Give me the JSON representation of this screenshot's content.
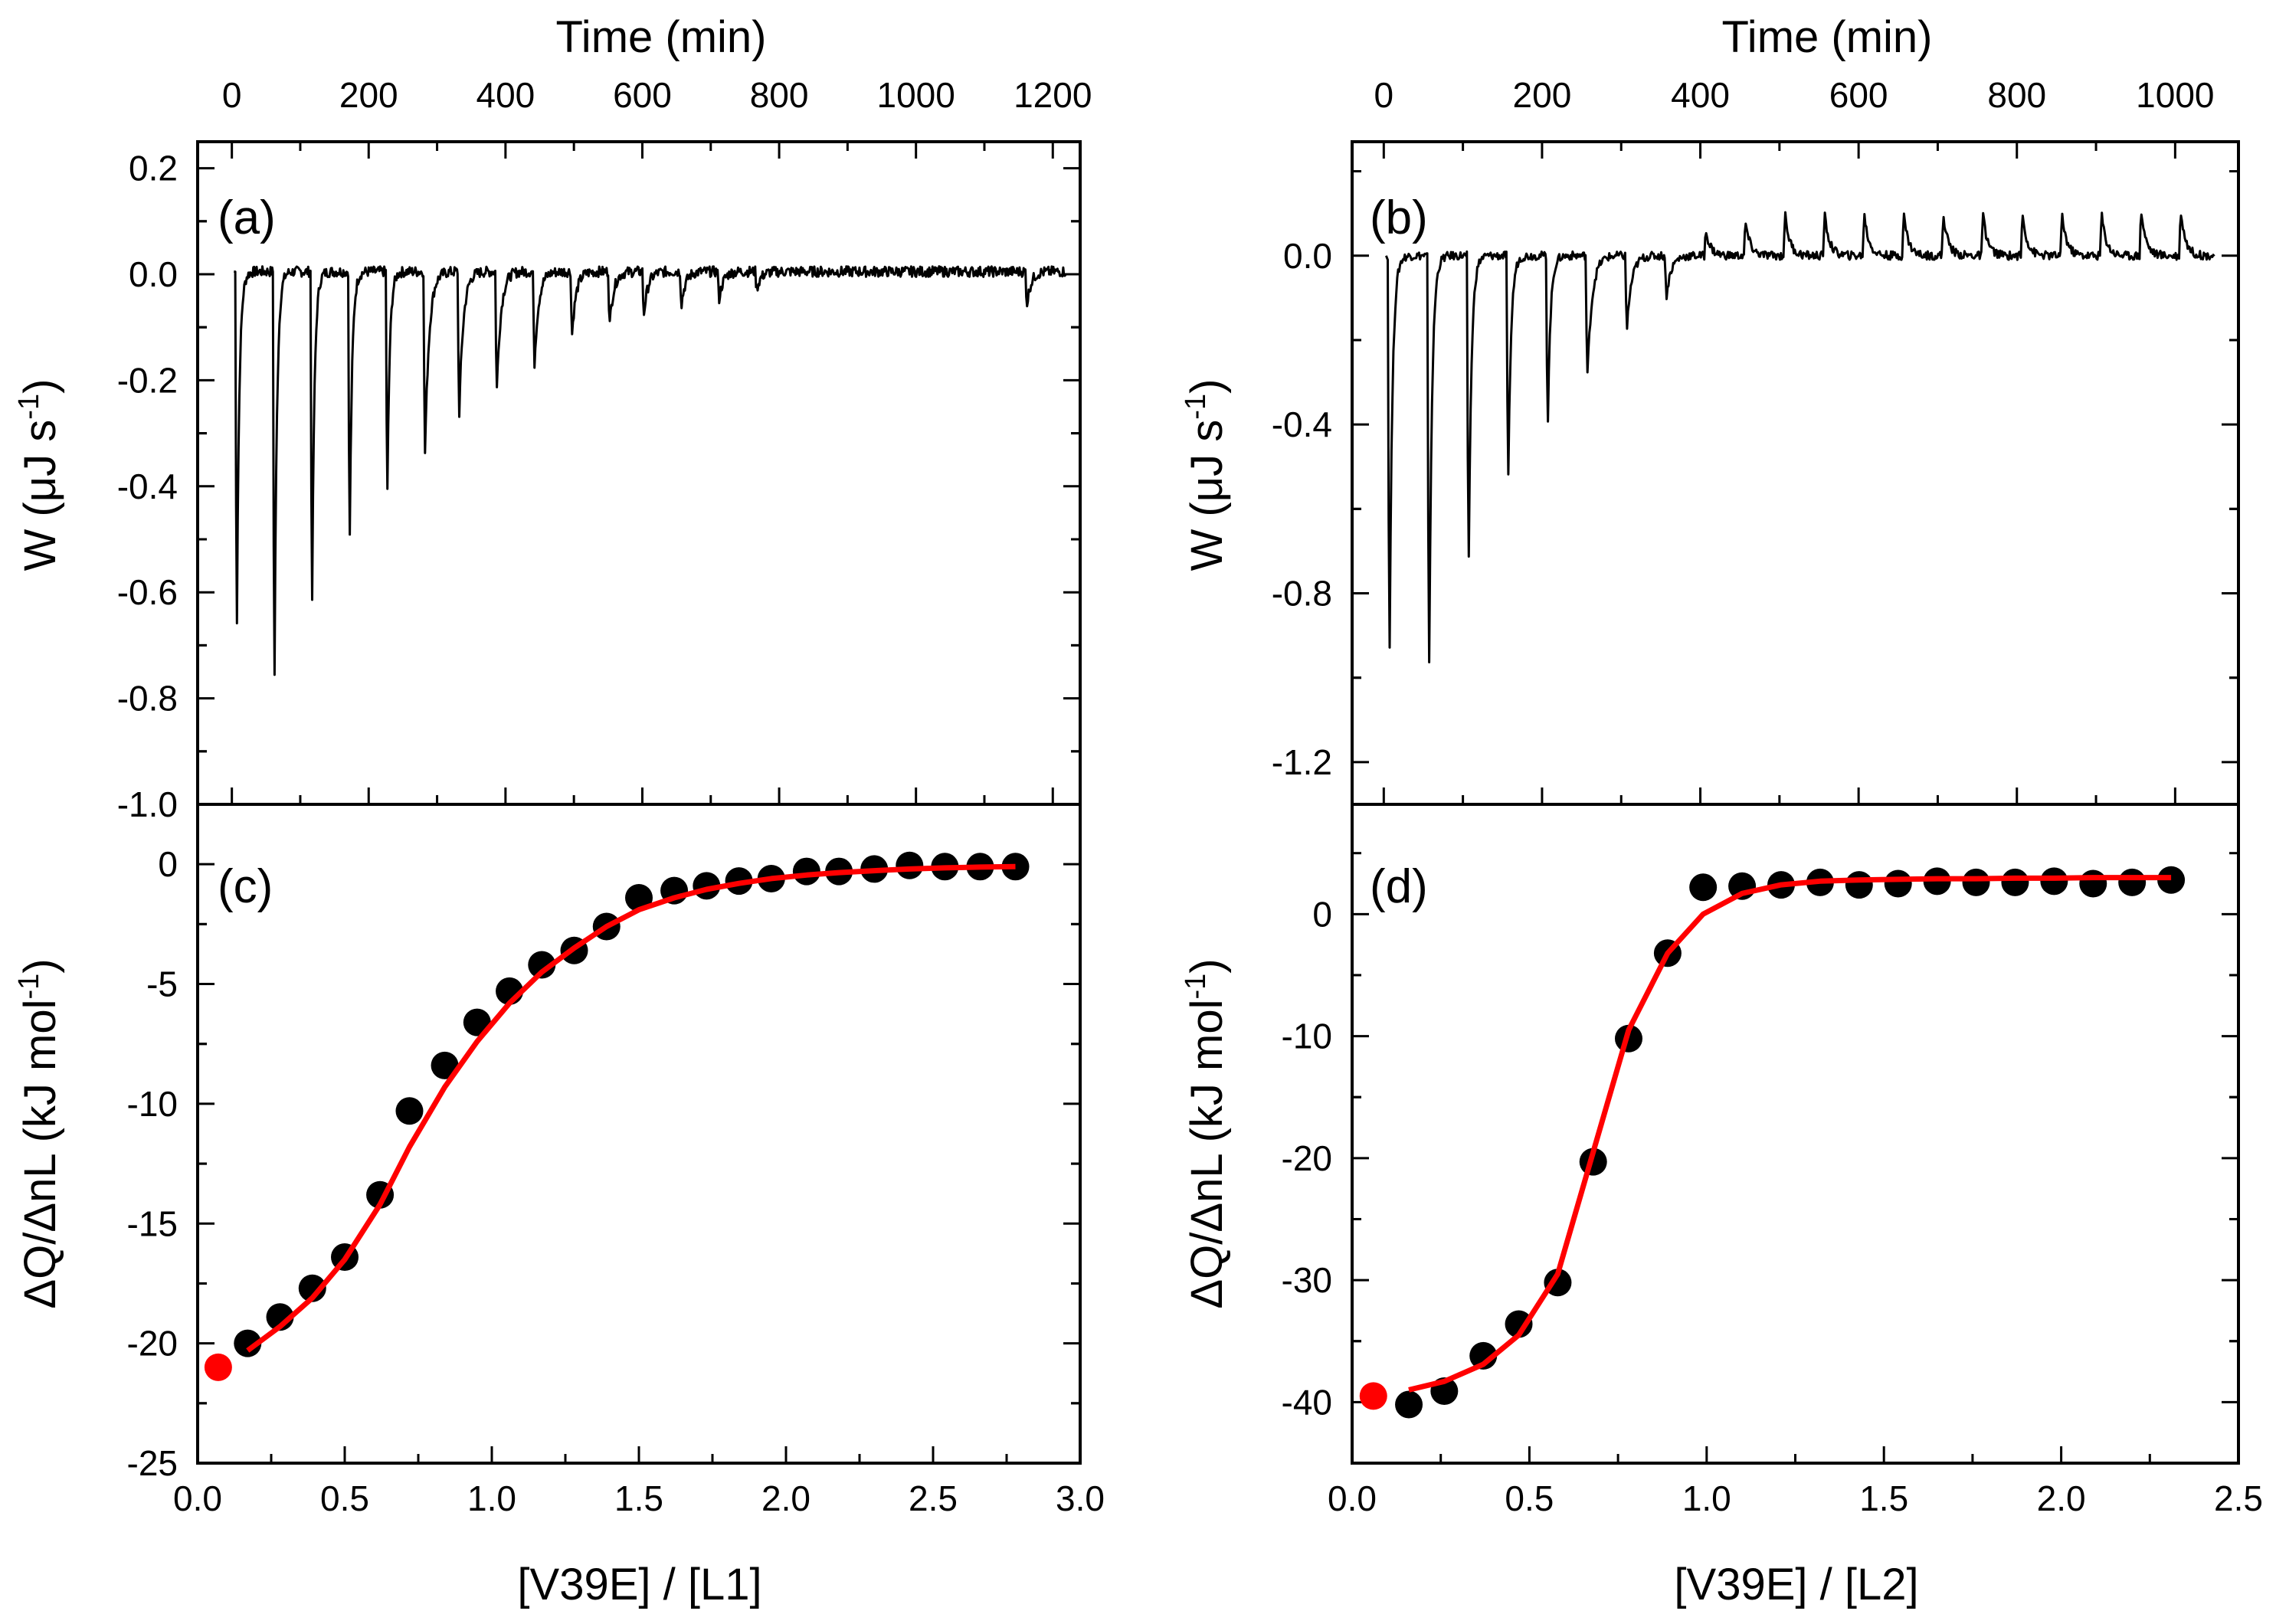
{
  "colors": {
    "trace": "#000000",
    "points": "#000000",
    "fit": "#ff0000",
    "first_point": "#ff0000",
    "background": "#ffffff"
  },
  "chart_data": [
    {
      "id": "a",
      "type": "line",
      "panel_label": "(a)",
      "xlabel": "Time (min)",
      "ylabel_main": "W (μJ s",
      "ylabel_sup": "-1",
      "ylabel_end": ")",
      "xlim": [
        -50,
        1240
      ],
      "ylim": [
        -1.0,
        0.25
      ],
      "x_ticks": [
        0,
        200,
        400,
        600,
        800,
        1000,
        1200
      ],
      "x_tick_labels": [
        "0",
        "200",
        "400",
        "600",
        "800",
        "1000",
        "1200"
      ],
      "y_ticks": [
        0.2,
        0.0,
        -0.2,
        -0.4,
        -0.6,
        -0.8,
        -1.0
      ],
      "y_tick_labels": [
        "0.2",
        "0.0",
        "-0.2",
        "-0.4",
        "-0.6",
        "-0.8",
        "-1.0"
      ],
      "grid": false,
      "series": [
        {
          "injections": [
            {
              "t": 5,
              "depth": -0.73
            },
            {
              "t": 60,
              "depth": -0.85
            },
            {
              "t": 115,
              "depth": -0.68
            },
            {
              "t": 170,
              "depth": -0.55
            },
            {
              "t": 225,
              "depth": -0.46
            },
            {
              "t": 280,
              "depth": -0.36
            },
            {
              "t": 330,
              "depth": -0.28
            },
            {
              "t": 385,
              "depth": -0.23
            },
            {
              "t": 440,
              "depth": -0.18
            },
            {
              "t": 495,
              "depth": -0.12
            },
            {
              "t": 550,
              "depth": -0.1
            },
            {
              "t": 600,
              "depth": -0.08
            },
            {
              "t": 655,
              "depth": -0.06
            },
            {
              "t": 710,
              "depth": -0.05
            },
            {
              "t": 765,
              "depth": -0.03
            },
            {
              "t": 1160,
              "depth": -0.06
            }
          ],
          "baseline": 0.005,
          "t_end": 1220
        }
      ]
    },
    {
      "id": "b",
      "type": "line",
      "panel_label": "(b)",
      "xlabel": "Time (min)",
      "ylabel_main": "W (μJ s",
      "ylabel_sup": "-1",
      "ylabel_end": ")",
      "xlim": [
        -40,
        1080
      ],
      "ylim": [
        -1.3,
        0.27
      ],
      "x_ticks": [
        0,
        200,
        400,
        600,
        800,
        1000
      ],
      "x_tick_labels": [
        "0",
        "200",
        "400",
        "600",
        "800",
        "1000"
      ],
      "y_ticks": [
        0.0,
        -0.4,
        -0.8,
        -1.2
      ],
      "y_tick_labels": [
        "0.0",
        "-0.4",
        "-0.8",
        "-1.2"
      ],
      "grid": false,
      "series": [
        {
          "injections": [
            {
              "t": 5,
              "depth": -1.04
            },
            {
              "t": 55,
              "depth": -1.09
            },
            {
              "t": 105,
              "depth": -0.81
            },
            {
              "t": 155,
              "depth": -0.59
            },
            {
              "t": 205,
              "depth": -0.43
            },
            {
              "t": 255,
              "depth": -0.3
            },
            {
              "t": 305,
              "depth": -0.18
            },
            {
              "t": 355,
              "depth": -0.1
            },
            {
              "t": 405,
              "depth": 0.06
            },
            {
              "t": 455,
              "depth": 0.08
            },
            {
              "t": 505,
              "depth": 0.1
            },
            {
              "t": 555,
              "depth": 0.1
            },
            {
              "t": 605,
              "depth": 0.1
            },
            {
              "t": 655,
              "depth": 0.1
            },
            {
              "t": 705,
              "depth": 0.1
            },
            {
              "t": 755,
              "depth": 0.1
            },
            {
              "t": 805,
              "depth": 0.1
            },
            {
              "t": 855,
              "depth": 0.1
            },
            {
              "t": 905,
              "depth": 0.1
            },
            {
              "t": 955,
              "depth": 0.11
            },
            {
              "t": 1005,
              "depth": 0.11
            }
          ],
          "baseline": 0.0,
          "t_end": 1050
        }
      ]
    },
    {
      "id": "c",
      "type": "scatter",
      "panel_label": "(c)",
      "xlabel": "[V39E] / [L1]",
      "ylabel_main": "ΔQ/ΔnL (kJ mol",
      "ylabel_sup": "-1",
      "ylabel_end": ")",
      "xlim": [
        0.0,
        3.0
      ],
      "ylim": [
        -25,
        2.5
      ],
      "x_ticks": [
        0.0,
        0.5,
        1.0,
        1.5,
        2.0,
        2.5,
        3.0
      ],
      "x_tick_labels": [
        "0.0",
        "0.5",
        "1.0",
        "1.5",
        "2.0",
        "2.5",
        "3.0"
      ],
      "y_ticks": [
        0,
        -5,
        -10,
        -15,
        -20,
        -25
      ],
      "y_tick_labels": [
        "0",
        "-5",
        "-10",
        "-15",
        "-20",
        "-25"
      ],
      "grid": false,
      "first_point": {
        "x": 0.07,
        "y": -21.0
      },
      "points": {
        "x": [
          0.17,
          0.28,
          0.39,
          0.5,
          0.62,
          0.72,
          0.84,
          0.95,
          1.06,
          1.17,
          1.28,
          1.39,
          1.5,
          1.62,
          1.73,
          1.84,
          1.95,
          2.07,
          2.18,
          2.3,
          2.42,
          2.54,
          2.66,
          2.78
        ],
        "y": [
          -20.0,
          -18.9,
          -17.7,
          -16.4,
          -13.8,
          -10.3,
          -8.4,
          -6.6,
          -5.3,
          -4.2,
          -3.6,
          -2.6,
          -1.4,
          -1.1,
          -0.9,
          -0.7,
          -0.6,
          -0.3,
          -0.3,
          -0.2,
          -0.05,
          -0.1,
          -0.1,
          -0.1
        ]
      },
      "fit": {
        "x": [
          0.17,
          0.28,
          0.39,
          0.5,
          0.62,
          0.72,
          0.84,
          0.95,
          1.06,
          1.17,
          1.28,
          1.39,
          1.5,
          1.62,
          1.73,
          1.84,
          1.95,
          2.07,
          2.18,
          2.3,
          2.42,
          2.54,
          2.66,
          2.78
        ],
        "y": [
          -20.3,
          -19.3,
          -18.1,
          -16.5,
          -14.2,
          -11.8,
          -9.3,
          -7.4,
          -5.8,
          -4.5,
          -3.5,
          -2.6,
          -1.9,
          -1.4,
          -1.05,
          -0.8,
          -0.6,
          -0.45,
          -0.35,
          -0.27,
          -0.2,
          -0.15,
          -0.12,
          -0.1
        ]
      }
    },
    {
      "id": "d",
      "type": "scatter",
      "panel_label": "(d)",
      "xlabel": "[V39E] / [L2]",
      "ylabel_main": "ΔQ/ΔnL (kJ mol",
      "ylabel_sup": "-1",
      "ylabel_end": ")",
      "xlim": [
        0.0,
        2.5
      ],
      "ylim": [
        -45,
        9
      ],
      "x_ticks": [
        0.0,
        0.5,
        1.0,
        1.5,
        2.0,
        2.5
      ],
      "x_tick_labels": [
        "0.0",
        "0.5",
        "1.0",
        "1.5",
        "2.0",
        "2.5"
      ],
      "y_ticks": [
        0,
        -10,
        -20,
        -30,
        -40
      ],
      "y_tick_labels": [
        "0",
        "-10",
        "-20",
        "-30",
        "-40"
      ],
      "grid": false,
      "first_point": {
        "x": 0.06,
        "y": -39.5
      },
      "points": {
        "x": [
          0.16,
          0.26,
          0.37,
          0.47,
          0.58,
          0.68,
          0.78,
          0.89,
          0.99,
          1.1,
          1.21,
          1.32,
          1.43,
          1.54,
          1.65,
          1.76,
          1.87,
          1.98,
          2.09,
          2.2,
          2.31
        ],
        "y": [
          -40.2,
          -39.1,
          -36.2,
          -33.6,
          -30.2,
          -20.3,
          -10.2,
          -3.2,
          2.2,
          2.3,
          2.4,
          2.6,
          2.4,
          2.5,
          2.7,
          2.6,
          2.6,
          2.7,
          2.5,
          2.6,
          2.8
        ]
      },
      "fit": {
        "x": [
          0.16,
          0.26,
          0.37,
          0.47,
          0.58,
          0.68,
          0.78,
          0.89,
          0.99,
          1.1,
          1.21,
          1.32,
          1.43,
          1.54,
          1.65,
          1.76,
          1.87,
          1.98,
          2.09,
          2.2,
          2.31
        ],
        "y": [
          -39.0,
          -38.3,
          -36.9,
          -34.5,
          -29.5,
          -19.5,
          -9.5,
          -3.2,
          0.0,
          1.7,
          2.4,
          2.7,
          2.8,
          2.85,
          2.9,
          2.9,
          2.95,
          2.95,
          3.0,
          3.0,
          3.0
        ]
      }
    }
  ]
}
